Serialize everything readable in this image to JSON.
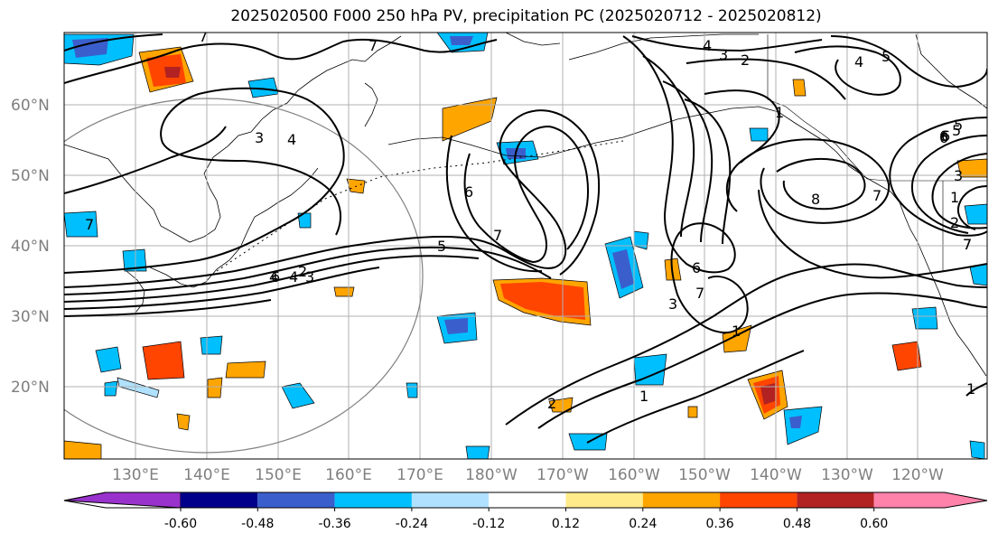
{
  "title": "2025020500 F000 250 hPa PV, precipitation PC (2025020712 - 2025020812)",
  "lat_labels": [
    "60°N",
    "50°N",
    "40°N",
    "30°N",
    "20°N"
  ],
  "lon_labels": [
    "130°E",
    "140°E",
    "150°E",
    "160°E",
    "170°E",
    "180°W",
    "170°W",
    "160°W",
    "150°W",
    "140°W",
    "130°W",
    "120°W"
  ],
  "colorbar": {
    "colors": [
      "#9932cc",
      "#00008b",
      "#3a5fcd",
      "#00bfff",
      "#b0e2ff",
      "#ffffff",
      "#ffeb8a",
      "#ffa500",
      "#ff4500",
      "#b22222",
      "#ff82ab"
    ],
    "tick_labels": [
      "-0.60",
      "-0.48",
      "-0.36",
      "-0.24",
      "-0.12",
      "0.12",
      "0.24",
      "0.36",
      "0.48",
      "0.60"
    ]
  },
  "contour_labels": [
    "7",
    "7",
    "4",
    "3",
    "2",
    "4",
    "5",
    "3",
    "4",
    "7",
    "6",
    "5",
    "7",
    "6",
    "8",
    "7",
    "6",
    "5",
    "2",
    "1",
    "7",
    "3",
    "4",
    "6",
    "6",
    "4",
    "3",
    "5",
    "7",
    "2",
    "1",
    "1",
    "6",
    "7",
    "3",
    "2",
    "1",
    "1"
  ]
}
